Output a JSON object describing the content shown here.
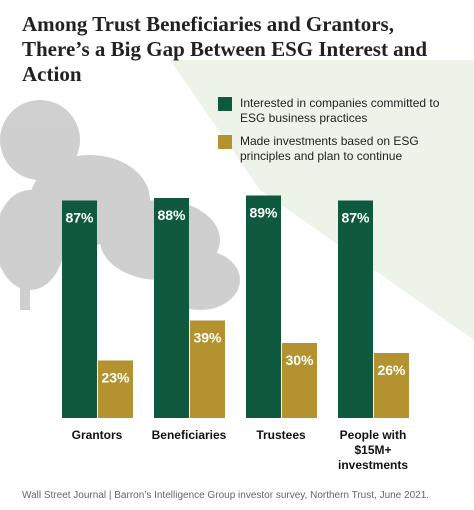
{
  "chart_data": {
    "type": "bar",
    "title": "Among Trust Beneficiaries and Grantors, There’s a Big Gap Between ESG Interest and Action",
    "categories": [
      "Grantors",
      "Beneficiaries",
      "Trustees",
      "People with $15M+ investments"
    ],
    "series": [
      {
        "name": "Interested in companies committed to ESG business practices",
        "color": "#0f5a3f",
        "values": [
          87,
          88,
          89,
          87
        ],
        "value_labels": [
          "87%",
          "88%",
          "89%",
          "87%"
        ]
      },
      {
        "name": "Made investments based on ESG principles and plan to continue",
        "color": "#b3922f",
        "values": [
          23,
          39,
          30,
          26
        ],
        "value_labels": [
          "23%",
          "39%",
          "30%",
          "26%"
        ]
      }
    ],
    "source": "Wall Street Journal | Barron’s Intelligence Group investor survey, Northern Trust, June 2021."
  }
}
